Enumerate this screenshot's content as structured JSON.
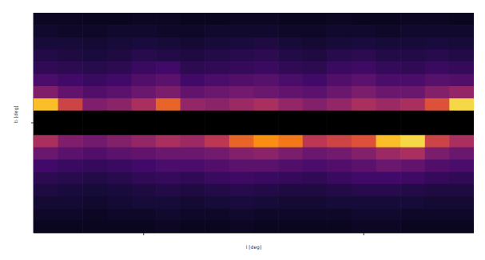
{
  "chart_data": {
    "type": "heatmap",
    "xlabel": "l [deg]",
    "ylabel": "b [deg]",
    "xlim": [
      -180,
      180
    ],
    "ylim": [
      -90,
      90
    ],
    "xticks": [
      -90,
      90
    ],
    "yticks": [
      0
    ],
    "tick_labels": false,
    "zlim": [
      0,
      1
    ],
    "x": [
      -170,
      -150,
      -130,
      -110,
      -90,
      -70,
      -50,
      -30,
      -10,
      10,
      30,
      50,
      70,
      90,
      110,
      130,
      150,
      170
    ],
    "y": [
      85,
      75,
      65,
      55,
      45,
      35,
      25,
      15,
      5,
      -5,
      -15,
      -25,
      -35,
      -45,
      -55,
      -65,
      -75,
      -85
    ],
    "cells": [
      [
        0.06,
        0.06,
        0.05,
        0.05,
        0.06,
        0.06,
        0.05,
        0.05,
        0.06,
        0.06,
        0.05,
        0.05,
        0.06,
        0.05,
        0.05,
        0.06,
        0.06,
        0.05
      ],
      [
        0.08,
        0.07,
        0.07,
        0.08,
        0.08,
        0.07,
        0.07,
        0.08,
        0.08,
        0.08,
        0.07,
        0.07,
        0.08,
        0.08,
        0.07,
        0.08,
        0.08,
        0.08
      ],
      [
        0.1,
        0.1,
        0.09,
        0.1,
        0.11,
        0.1,
        0.09,
        0.1,
        0.11,
        0.12,
        0.1,
        0.09,
        0.1,
        0.11,
        0.1,
        0.1,
        0.11,
        0.1
      ],
      [
        0.13,
        0.12,
        0.11,
        0.12,
        0.14,
        0.13,
        0.12,
        0.13,
        0.14,
        0.15,
        0.13,
        0.12,
        0.14,
        0.15,
        0.13,
        0.13,
        0.14,
        0.13
      ],
      [
        0.16,
        0.15,
        0.14,
        0.15,
        0.18,
        0.2,
        0.15,
        0.16,
        0.17,
        0.18,
        0.16,
        0.15,
        0.18,
        0.19,
        0.17,
        0.16,
        0.18,
        0.17
      ],
      [
        0.22,
        0.2,
        0.18,
        0.2,
        0.24,
        0.26,
        0.2,
        0.22,
        0.24,
        0.25,
        0.22,
        0.2,
        0.24,
        0.26,
        0.22,
        0.22,
        0.25,
        0.24
      ],
      [
        0.35,
        0.28,
        0.24,
        0.26,
        0.3,
        0.34,
        0.28,
        0.3,
        0.32,
        0.3,
        0.28,
        0.26,
        0.3,
        0.34,
        0.3,
        0.3,
        0.36,
        0.4
      ],
      [
        0.85,
        0.55,
        0.35,
        0.38,
        0.45,
        0.65,
        0.4,
        0.38,
        0.42,
        0.45,
        0.4,
        0.36,
        0.4,
        0.45,
        0.42,
        0.45,
        0.6,
        0.9
      ],
      [
        null,
        null,
        null,
        null,
        null,
        null,
        null,
        null,
        null,
        null,
        null,
        null,
        null,
        null,
        null,
        null,
        null,
        null
      ],
      [
        null,
        null,
        null,
        null,
        null,
        null,
        null,
        null,
        null,
        null,
        null,
        null,
        null,
        null,
        null,
        null,
        null,
        null
      ],
      [
        0.45,
        0.35,
        0.32,
        0.36,
        0.4,
        0.45,
        0.42,
        0.5,
        0.65,
        0.75,
        0.7,
        0.5,
        0.55,
        0.6,
        0.85,
        0.9,
        0.55,
        0.45
      ],
      [
        0.3,
        0.26,
        0.24,
        0.26,
        0.28,
        0.3,
        0.3,
        0.32,
        0.36,
        0.38,
        0.34,
        0.3,
        0.32,
        0.36,
        0.42,
        0.45,
        0.34,
        0.3
      ],
      [
        0.2,
        0.18,
        0.17,
        0.18,
        0.2,
        0.22,
        0.22,
        0.24,
        0.26,
        0.26,
        0.24,
        0.22,
        0.24,
        0.26,
        0.3,
        0.28,
        0.24,
        0.22
      ],
      [
        0.15,
        0.14,
        0.13,
        0.14,
        0.16,
        0.17,
        0.16,
        0.18,
        0.19,
        0.18,
        0.17,
        0.16,
        0.18,
        0.2,
        0.2,
        0.19,
        0.17,
        0.16
      ],
      [
        0.12,
        0.11,
        0.1,
        0.11,
        0.12,
        0.13,
        0.12,
        0.13,
        0.14,
        0.13,
        0.12,
        0.12,
        0.13,
        0.14,
        0.14,
        0.13,
        0.12,
        0.12
      ],
      [
        0.09,
        0.09,
        0.08,
        0.09,
        0.1,
        0.1,
        0.09,
        0.1,
        0.11,
        0.1,
        0.09,
        0.09,
        0.1,
        0.1,
        0.1,
        0.1,
        0.09,
        0.09
      ],
      [
        0.07,
        0.07,
        0.06,
        0.07,
        0.07,
        0.08,
        0.07,
        0.07,
        0.08,
        0.07,
        0.07,
        0.07,
        0.07,
        0.08,
        0.08,
        0.07,
        0.07,
        0.07
      ],
      [
        0.05,
        0.05,
        0.05,
        0.05,
        0.05,
        0.06,
        0.05,
        0.05,
        0.06,
        0.05,
        0.05,
        0.05,
        0.05,
        0.06,
        0.06,
        0.05,
        0.05,
        0.05
      ]
    ]
  }
}
